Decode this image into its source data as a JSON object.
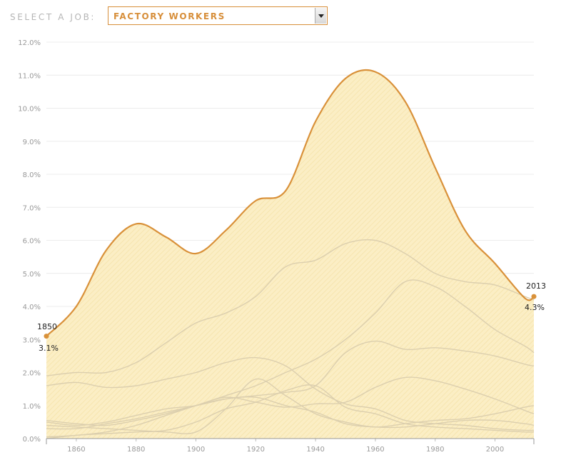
{
  "selector": {
    "label": "SELECT A JOB:",
    "selected": "FACTORY WORKERS"
  },
  "colors": {
    "accent": "#d9913a",
    "area_fill": "#fbedc3",
    "other_lines": "#dccfae",
    "grid": "#ececec"
  },
  "chart_data": {
    "type": "area",
    "title": "",
    "xlabel": "",
    "ylabel": "",
    "xlim": [
      1850,
      2013
    ],
    "ylim": [
      0,
      12
    ],
    "y_ticks": [
      "0.0%",
      "1.0%",
      "2.0%",
      "3.0%",
      "4.0%",
      "5.0%",
      "6.0%",
      "7.0%",
      "8.0%",
      "9.0%",
      "10.0%",
      "11.0%",
      "12.0%"
    ],
    "x_ticks": [
      "1860",
      "1880",
      "1900",
      "1920",
      "1940",
      "1960",
      "1980",
      "2000"
    ],
    "grid": true,
    "highlighted_series": {
      "name": "Factory workers",
      "x": [
        1850,
        1860,
        1870,
        1880,
        1890,
        1900,
        1910,
        1920,
        1930,
        1940,
        1950,
        1960,
        1970,
        1980,
        1990,
        2000,
        2010,
        2013
      ],
      "values": [
        3.1,
        4.0,
        5.7,
        6.5,
        6.1,
        5.6,
        6.3,
        7.2,
        7.5,
        9.6,
        10.9,
        11.1,
        10.2,
        8.2,
        6.3,
        5.3,
        4.25,
        4.3
      ]
    },
    "start_label": {
      "year": "1850",
      "value": "3.1%"
    },
    "end_label": {
      "year": "2013",
      "value": "4.3%"
    },
    "other_series": [
      {
        "x": [
          1850,
          1860,
          1870,
          1880,
          1890,
          1900,
          1910,
          1920,
          1930,
          1940,
          1950,
          1960,
          1970,
          1980,
          1990,
          2000,
          2010,
          2013
        ],
        "values": [
          1.9,
          2.0,
          2.0,
          2.3,
          2.9,
          3.5,
          3.8,
          4.3,
          5.2,
          5.4,
          5.9,
          6.0,
          5.6,
          5.0,
          4.75,
          4.65,
          4.3,
          4.2
        ]
      },
      {
        "x": [
          1850,
          1860,
          1870,
          1880,
          1890,
          1900,
          1910,
          1920,
          1930,
          1940,
          1950,
          1960,
          1970,
          1980,
          1990,
          2000,
          2010,
          2013
        ],
        "values": [
          1.6,
          1.7,
          1.55,
          1.6,
          1.8,
          2.0,
          2.3,
          2.45,
          2.2,
          1.5,
          1.05,
          0.9,
          0.55,
          0.45,
          0.4,
          0.3,
          0.25,
          0.25
        ]
      },
      {
        "x": [
          1850,
          1860,
          1870,
          1880,
          1890,
          1900,
          1910,
          1920,
          1930,
          1940,
          1950,
          1960,
          1970,
          1980,
          1990,
          2000,
          2010,
          2013
        ],
        "values": [
          0.05,
          0.1,
          0.2,
          0.4,
          0.7,
          1.0,
          1.3,
          1.6,
          2.0,
          2.4,
          3.0,
          3.8,
          4.75,
          4.6,
          4.0,
          3.3,
          2.8,
          2.6
        ]
      },
      {
        "x": [
          1850,
          1860,
          1870,
          1880,
          1890,
          1900,
          1910,
          1920,
          1930,
          1940,
          1950,
          1960,
          1970,
          1980,
          1990,
          2000,
          2010,
          2013
        ],
        "values": [
          0.5,
          0.4,
          0.5,
          0.7,
          0.9,
          1.0,
          1.2,
          1.3,
          1.4,
          1.6,
          2.6,
          2.95,
          2.7,
          2.75,
          2.65,
          2.5,
          2.25,
          2.2
        ]
      },
      {
        "x": [
          1850,
          1860,
          1870,
          1880,
          1890,
          1900,
          1910,
          1920,
          1930,
          1940,
          1950,
          1960,
          1970,
          1980,
          1990,
          2000,
          2010,
          2013
        ],
        "values": [
          0.3,
          0.3,
          0.45,
          0.6,
          0.8,
          1.0,
          1.25,
          1.1,
          0.95,
          1.05,
          1.1,
          1.55,
          1.85,
          1.75,
          1.5,
          1.2,
          0.85,
          0.75
        ]
      },
      {
        "x": [
          1850,
          1860,
          1870,
          1880,
          1890,
          1900,
          1910,
          1920,
          1930,
          1940,
          1950,
          1960,
          1970,
          1980,
          1990,
          2000,
          2010,
          2013
        ],
        "values": [
          0.0,
          0.1,
          0.15,
          0.2,
          0.25,
          0.5,
          0.9,
          1.1,
          1.45,
          1.6,
          0.95,
          0.75,
          0.45,
          0.35,
          0.3,
          0.25,
          0.2,
          0.2
        ]
      },
      {
        "x": [
          1850,
          1860,
          1870,
          1880,
          1890,
          1900,
          1910,
          1920,
          1930,
          1940,
          1950,
          1960,
          1970,
          1980,
          1990,
          2000,
          2010,
          2013
        ],
        "values": [
          0.4,
          0.35,
          0.3,
          0.25,
          0.2,
          0.2,
          0.9,
          1.8,
          1.3,
          0.75,
          0.5,
          0.35,
          0.45,
          0.55,
          0.6,
          0.75,
          0.95,
          1.0
        ]
      },
      {
        "x": [
          1850,
          1860,
          1870,
          1880,
          1890,
          1900,
          1910,
          1920,
          1930,
          1940,
          1950,
          1960,
          1970,
          1980,
          1990,
          2000,
          2010,
          2013
        ],
        "values": [
          0.55,
          0.45,
          0.4,
          0.55,
          0.75,
          1.0,
          1.2,
          1.25,
          1.0,
          0.8,
          0.45,
          0.35,
          0.35,
          0.45,
          0.55,
          0.55,
          0.45,
          0.4
        ]
      }
    ]
  }
}
